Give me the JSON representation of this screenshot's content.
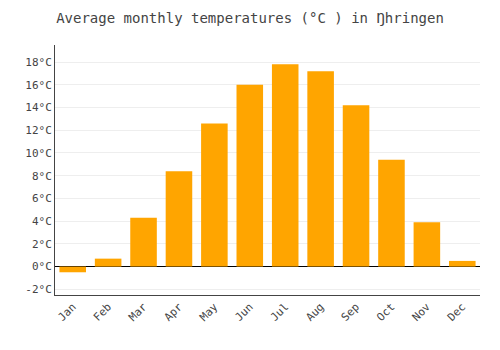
{
  "chart_data": {
    "type": "bar",
    "title": "Average monthly temperatures (°C ) in Ŋhringen",
    "categories": [
      "Jan",
      "Feb",
      "Mar",
      "Apr",
      "May",
      "Jun",
      "Jul",
      "Aug",
      "Sep",
      "Oct",
      "Nov",
      "Dec"
    ],
    "values": [
      -0.5,
      0.7,
      4.3,
      8.4,
      12.6,
      16.0,
      17.8,
      17.2,
      14.2,
      9.4,
      3.9,
      0.5
    ],
    "color": "#FFA500",
    "ylim": [
      -2.5,
      19.5
    ],
    "yticks": [
      {
        "value": -2,
        "label": "-2°C"
      },
      {
        "value": 0,
        "label": "0°C"
      },
      {
        "value": 2,
        "label": "2°C"
      },
      {
        "value": 4,
        "label": "4°C"
      },
      {
        "value": 6,
        "label": "6°C"
      },
      {
        "value": 8,
        "label": "8°C"
      },
      {
        "value": 10,
        "label": "10°C"
      },
      {
        "value": 12,
        "label": "12°C"
      },
      {
        "value": 14,
        "label": "14°C"
      },
      {
        "value": 16,
        "label": "16°C"
      },
      {
        "value": 18,
        "label": "18°C"
      }
    ],
    "grid": true
  }
}
